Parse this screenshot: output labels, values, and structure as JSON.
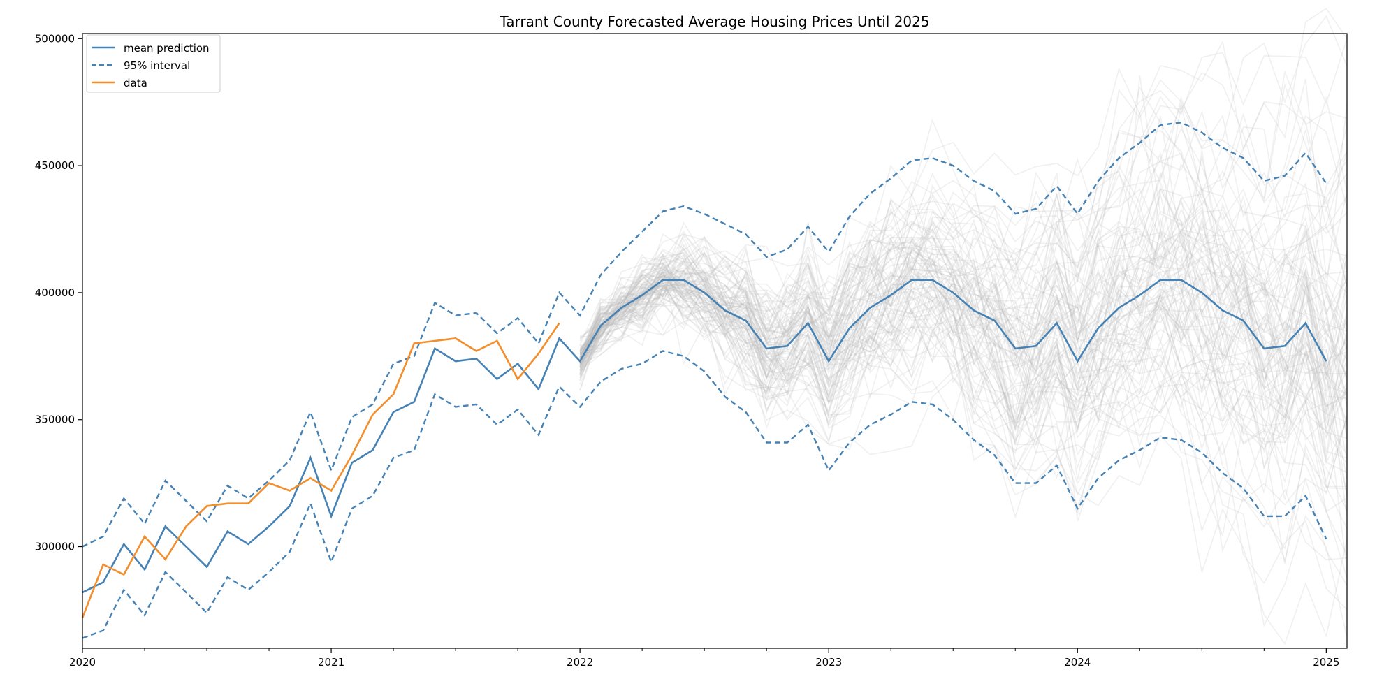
{
  "chart_data": {
    "type": "line",
    "title": "Tarrant County Forecasted Average Housing Prices Until 2025",
    "xlabel": "",
    "ylabel": "",
    "x_ticks": [
      "2020",
      "2021",
      "2022",
      "2023",
      "2024",
      "2025"
    ],
    "y_ticks": [
      300000,
      350000,
      400000,
      450000,
      500000
    ],
    "xlim": [
      "2020-01",
      "2025-02"
    ],
    "ylim": [
      260000,
      502000
    ],
    "grid": false,
    "legend_position": "top-left",
    "series": [
      {
        "name": "mean prediction",
        "color": "#4682b4",
        "style": "solid",
        "x": [
          "2020-01",
          "2020-02",
          "2020-03",
          "2020-04",
          "2020-05",
          "2020-06",
          "2020-07",
          "2020-08",
          "2020-09",
          "2020-10",
          "2020-11",
          "2020-12",
          "2021-01",
          "2021-02",
          "2021-03",
          "2021-04",
          "2021-05",
          "2021-06",
          "2021-07",
          "2021-08",
          "2021-09",
          "2021-10",
          "2021-11",
          "2021-12",
          "2022-01",
          "2022-02",
          "2022-03",
          "2022-04",
          "2022-05",
          "2022-06",
          "2022-07",
          "2022-08",
          "2022-09",
          "2022-10",
          "2022-11",
          "2022-12",
          "2023-01",
          "2023-02",
          "2023-03",
          "2023-04",
          "2023-05",
          "2023-06",
          "2023-07",
          "2023-08",
          "2023-09",
          "2023-10",
          "2023-11",
          "2023-12",
          "2024-01",
          "2024-02",
          "2024-03",
          "2024-04",
          "2024-05",
          "2024-06",
          "2024-07",
          "2024-08",
          "2024-09",
          "2024-10",
          "2024-11",
          "2024-12",
          "2025-01"
        ],
        "values": [
          282000,
          286000,
          301000,
          291000,
          308000,
          300000,
          292000,
          306000,
          301000,
          308000,
          316000,
          335000,
          312000,
          333000,
          338000,
          353000,
          357000,
          378000,
          373000,
          374000,
          366000,
          372000,
          362000,
          382000,
          373000,
          387000,
          394000,
          399000,
          405000,
          405000,
          400000,
          393000,
          389000,
          378000,
          379000,
          388000,
          373000,
          386000,
          394000,
          399000,
          405000,
          405000,
          400000,
          393000,
          389000,
          378000,
          379000,
          388000,
          373000,
          386000,
          394000,
          399000,
          405000,
          405000,
          400000,
          393000,
          389000,
          378000,
          379000,
          388000,
          373000
        ]
      },
      {
        "name": "95% interval",
        "color": "#4682b4",
        "style": "dashed",
        "x": [
          "2020-01",
          "2020-02",
          "2020-03",
          "2020-04",
          "2020-05",
          "2020-06",
          "2020-07",
          "2020-08",
          "2020-09",
          "2020-10",
          "2020-11",
          "2020-12",
          "2021-01",
          "2021-02",
          "2021-03",
          "2021-04",
          "2021-05",
          "2021-06",
          "2021-07",
          "2021-08",
          "2021-09",
          "2021-10",
          "2021-11",
          "2021-12",
          "2022-01",
          "2022-02",
          "2022-03",
          "2022-04",
          "2022-05",
          "2022-06",
          "2022-07",
          "2022-08",
          "2022-09",
          "2022-10",
          "2022-11",
          "2022-12",
          "2023-01",
          "2023-02",
          "2023-03",
          "2023-04",
          "2023-05",
          "2023-06",
          "2023-07",
          "2023-08",
          "2023-09",
          "2023-10",
          "2023-11",
          "2023-12",
          "2024-01",
          "2024-02",
          "2024-03",
          "2024-04",
          "2024-05",
          "2024-06",
          "2024-07",
          "2024-08",
          "2024-09",
          "2024-10",
          "2024-11",
          "2024-12",
          "2025-01"
        ],
        "upper": [
          300000,
          304000,
          319000,
          309000,
          326000,
          318000,
          310000,
          324000,
          319000,
          326000,
          334000,
          353000,
          330000,
          351000,
          356000,
          372000,
          375000,
          396000,
          391000,
          392000,
          384000,
          390000,
          380000,
          400000,
          391000,
          407000,
          416000,
          424000,
          432000,
          434000,
          431000,
          427000,
          423000,
          414000,
          417000,
          426000,
          416000,
          430000,
          439000,
          445000,
          452000,
          453000,
          450000,
          444000,
          440000,
          431000,
          433000,
          442000,
          431000,
          444000,
          453000,
          459000,
          466000,
          467000,
          463000,
          457000,
          453000,
          444000,
          446000,
          455000,
          443000
        ],
        "lower": [
          264000,
          267000,
          283000,
          273000,
          290000,
          282000,
          274000,
          288000,
          283000,
          290000,
          298000,
          317000,
          294000,
          315000,
          320000,
          335000,
          338000,
          360000,
          355000,
          356000,
          348000,
          354000,
          344000,
          363000,
          355000,
          365000,
          370000,
          372000,
          377000,
          375000,
          369000,
          359000,
          353000,
          341000,
          341000,
          348000,
          330000,
          341000,
          348000,
          352000,
          357000,
          356000,
          350000,
          342000,
          336000,
          325000,
          325000,
          332000,
          315000,
          327000,
          334000,
          338000,
          343000,
          342000,
          337000,
          329000,
          323000,
          312000,
          312000,
          320000,
          303000
        ]
      },
      {
        "name": "data",
        "color": "#f28e2b",
        "style": "solid",
        "x": [
          "2020-01",
          "2020-02",
          "2020-03",
          "2020-04",
          "2020-05",
          "2020-06",
          "2020-07",
          "2020-08",
          "2020-09",
          "2020-10",
          "2020-11",
          "2020-12",
          "2021-01",
          "2021-02",
          "2021-03",
          "2021-04",
          "2021-05",
          "2021-06",
          "2021-07",
          "2021-08",
          "2021-09",
          "2021-10",
          "2021-11",
          "2021-12"
        ],
        "values": [
          272000,
          293000,
          289000,
          304000,
          295000,
          308000,
          316000,
          317000,
          317000,
          325000,
          322000,
          327000,
          322000,
          336000,
          352000,
          360000,
          380000,
          381000,
          382000,
          377000,
          381000,
          366000,
          376000,
          388000
        ]
      }
    ],
    "simulated_paths": {
      "count": 100,
      "color": "#bbbbbb",
      "opacity": 0.22,
      "x_range": [
        "2022-01",
        "2025-02"
      ]
    }
  }
}
